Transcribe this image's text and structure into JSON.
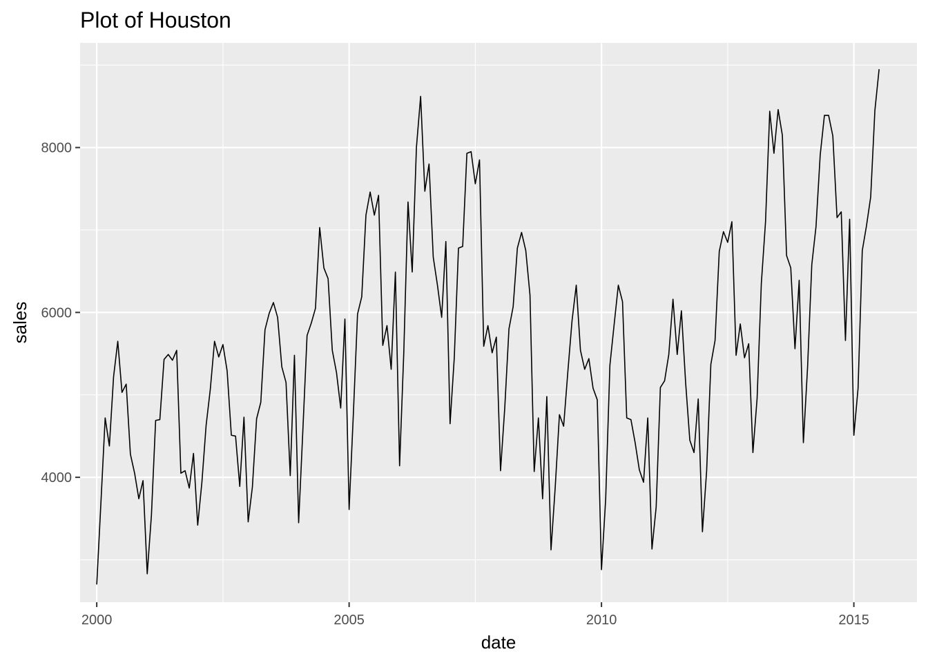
{
  "chart_data": {
    "type": "line",
    "title": "Plot of Houston",
    "xlabel": "date",
    "ylabel": "sales",
    "x_ticks": [
      2000,
      2005,
      2010,
      2015
    ],
    "y_ticks": [
      4000,
      6000,
      8000
    ],
    "xlim": [
      1999.67,
      2016.25
    ],
    "ylim": [
      2485,
      9270
    ],
    "grid": true,
    "legend": "none",
    "colors": {
      "panel": "#ebebeb",
      "grid": "#ffffff",
      "line": "#000000"
    },
    "x_start": 2000.0,
    "step": 0.0833333,
    "values": [
      2700,
      3700,
      4720,
      4380,
      5220,
      5650,
      5030,
      5130,
      4280,
      4050,
      3740,
      3960,
      2830,
      3540,
      4690,
      4700,
      5430,
      5490,
      5420,
      5540,
      4050,
      4080,
      3870,
      4290,
      3420,
      3940,
      4630,
      5070,
      5650,
      5460,
      5610,
      5290,
      4510,
      4500,
      3890,
      4730,
      3460,
      3880,
      4710,
      4910,
      5790,
      5990,
      6120,
      5940,
      5340,
      5150,
      4020,
      5480,
      3450,
      4570,
      5720,
      5870,
      6050,
      7030,
      6540,
      6410,
      5540,
      5270,
      4840,
      5920,
      3610,
      4760,
      5980,
      6190,
      7180,
      7460,
      7180,
      7420,
      5600,
      5840,
      5310,
      6490,
      4140,
      5520,
      7340,
      6490,
      8000,
      8620,
      7470,
      7800,
      6670,
      6330,
      5940,
      6860,
      4650,
      5450,
      6780,
      6800,
      7930,
      7950,
      7560,
      7850,
      5590,
      5840,
      5510,
      5700,
      4080,
      4840,
      5800,
      6070,
      6780,
      6970,
      6750,
      6210,
      4070,
      4720,
      3740,
      4980,
      3120,
      3880,
      4760,
      4620,
      5280,
      5900,
      6330,
      5540,
      5310,
      5440,
      5080,
      4940,
      2880,
      3740,
      5360,
      5850,
      6330,
      6130,
      4720,
      4700,
      4420,
      4090,
      3940,
      4720,
      3130,
      3640,
      5090,
      5170,
      5490,
      6160,
      5490,
      6020,
      5150,
      4450,
      4300,
      4950,
      3340,
      4080,
      5370,
      5660,
      6740,
      6980,
      6850,
      7100,
      5480,
      5860,
      5450,
      5620,
      4300,
      4960,
      6350,
      7100,
      8440,
      7930,
      8460,
      8150,
      6690,
      6540,
      5560,
      6390,
      4420,
      5340,
      6580,
      7040,
      7910,
      8390,
      8390,
      8140,
      7150,
      7220,
      5660,
      7130,
      4510,
      5080,
      6750,
      7050,
      7400,
      8450,
      8950
    ]
  }
}
